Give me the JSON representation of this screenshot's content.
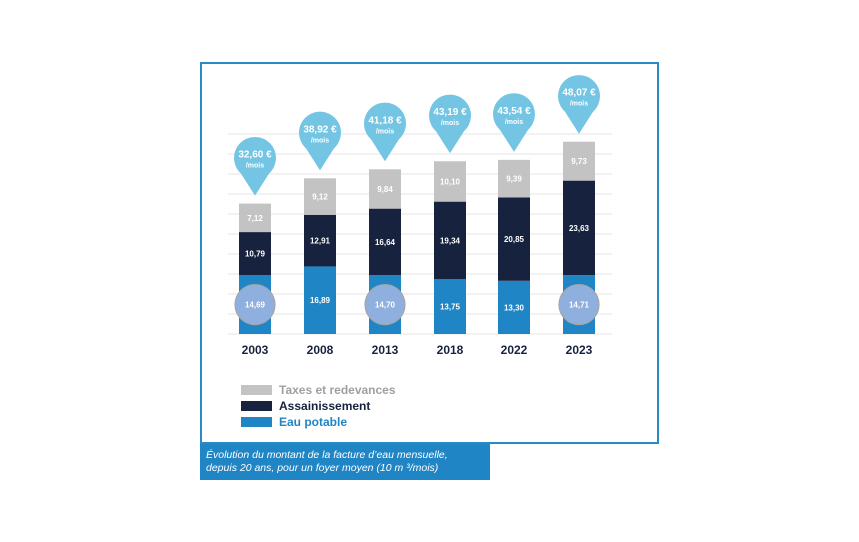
{
  "chart_data": {
    "type": "bar",
    "stacked": true,
    "categories": [
      "2003",
      "2008",
      "2013",
      "2018",
      "2022",
      "2023"
    ],
    "series": [
      {
        "name": "Eau potable",
        "values": [
          14.69,
          16.89,
          14.7,
          13.75,
          13.3,
          14.71
        ],
        "labels": [
          "14,69",
          "16,89",
          "14,70",
          "13,75",
          "13,30",
          "14,71"
        ],
        "color": "#1f85c4"
      },
      {
        "name": "Assainissement",
        "values": [
          10.79,
          12.91,
          16.64,
          19.34,
          20.85,
          23.63
        ],
        "labels": [
          "10,79",
          "12,91",
          "16,64",
          "19,34",
          "20,85",
          "23,63"
        ],
        "color": "#17223f"
      },
      {
        "name": "Taxes et redevances",
        "values": [
          7.12,
          9.12,
          9.84,
          10.1,
          9.39,
          9.73
        ],
        "labels": [
          "7,12",
          "9,12",
          "9,84",
          "10,10",
          "9,39",
          "9,73"
        ],
        "color": "#c3c3c3"
      }
    ],
    "totals": [
      "32,60 €",
      "38,92 €",
      "41,18 €",
      "43,19 €",
      "43,54 €",
      "48,07 €"
    ],
    "total_unit": "/mois",
    "highlighted_categories": [
      "2003",
      "2013",
      "2023"
    ],
    "ylim": [
      0,
      52
    ],
    "legend_position": "bottom-left",
    "grid": true,
    "colors": {
      "pin": "#74c5e3",
      "frame": "#2a8ac6",
      "highlight": "#8fb0de",
      "grid": "#e6e6e6"
    }
  },
  "caption": {
    "line1": "Évolution du montant de la facture d’eau mensuelle,",
    "line2": "depuis 20 ans, pour un foyer moyen (10 m ³/mois)"
  }
}
